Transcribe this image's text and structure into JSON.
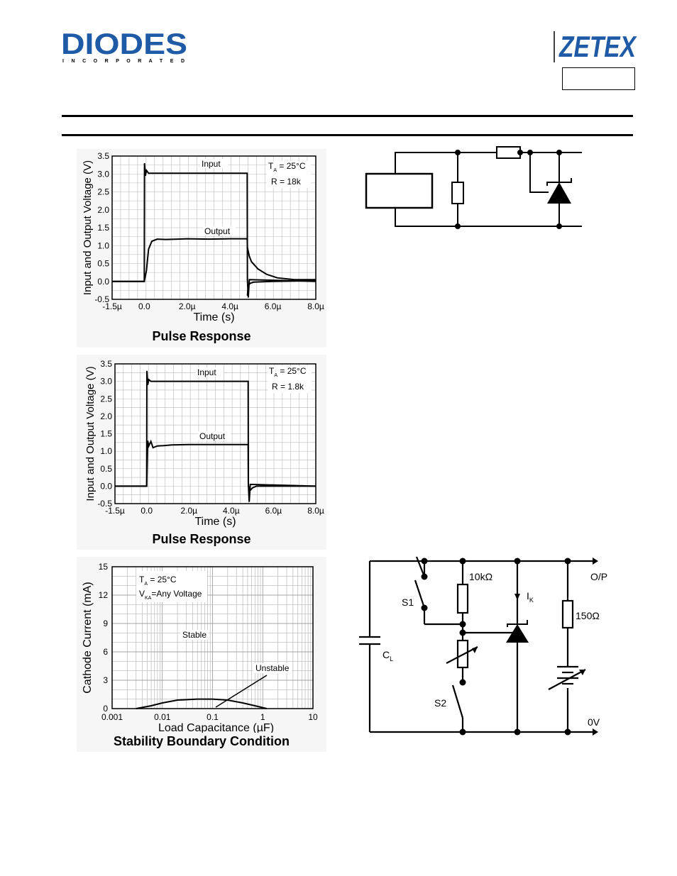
{
  "header": {
    "diodes_logo_text": "DIODES",
    "diodes_logo_sub": "I N C O R P O R A T E D",
    "zetex_logo_text": "ZETEX",
    "accent_color": "#1f5aa6"
  },
  "charts": {
    "pulse1": {
      "caption": "Pulse Response",
      "chart_data": {
        "type": "line",
        "title": "",
        "xlabel": "Time (s)",
        "ylabel": "Input and Output Voltage (V)",
        "xlim": [
          -1.5,
          8.0
        ],
        "ylim": [
          -0.5,
          3.5
        ],
        "x_ticks": [
          "-1.5µ",
          "0.0",
          "2.0µ",
          "4.0µ",
          "6.0µ",
          "8.0µ"
        ],
        "x_tick_values": [
          -1.5,
          0,
          2,
          4,
          6,
          8
        ],
        "y_ticks": [
          "-0.5",
          "0.0",
          "0.5",
          "1.0",
          "1.5",
          "2.0",
          "2.5",
          "3.0",
          "3.5"
        ],
        "y_tick_values": [
          -0.5,
          0,
          0.5,
          1,
          1.5,
          2,
          2.5,
          3,
          3.5
        ],
        "annotations": [
          "T",
          "A",
          "= 25°C",
          "R = 18k"
        ],
        "series": [
          {
            "name": "Input",
            "x": [
              -1.5,
              0.0,
              0.01,
              0.05,
              0.1,
              0.2,
              4.8,
              4.81,
              4.85,
              4.9,
              8.0
            ],
            "y": [
              0,
              0,
              3.3,
              2.95,
              3.1,
              3.02,
              3.02,
              0.05,
              -0.45,
              0.05,
              0.0
            ]
          },
          {
            "name": "Output",
            "x": [
              -1.5,
              0.0,
              0.1,
              0.2,
              0.35,
              0.6,
              1.0,
              2.0,
              3.0,
              4.0,
              4.8,
              4.81,
              4.9,
              5.0,
              5.3,
              5.7,
              6.2,
              7.0,
              8.0
            ],
            "y": [
              0,
              0,
              0.3,
              0.9,
              1.12,
              1.18,
              1.17,
              1.19,
              1.18,
              1.19,
              1.19,
              0.95,
              0.7,
              0.55,
              0.35,
              0.2,
              0.1,
              0.05,
              0.05
            ]
          },
          {
            "name": "",
            "x": [
              4.81,
              4.85,
              4.95,
              5.1,
              5.5,
              6.0,
              8.0
            ],
            "y": [
              -0.4,
              -0.1,
              -0.05,
              -0.02,
              -0.01,
              0.0,
              0.02
            ]
          }
        ]
      }
    },
    "pulse2": {
      "caption": "Pulse Response",
      "chart_data": {
        "type": "line",
        "title": "",
        "xlabel": "Time (s)",
        "ylabel": "Input and Output Voltage (V)",
        "xlim": [
          -1.5,
          8.0
        ],
        "ylim": [
          -0.5,
          3.5
        ],
        "x_ticks": [
          "-1.5µ",
          "0.0",
          "2.0µ",
          "4.0µ",
          "6.0µ",
          "8.0µ"
        ],
        "x_tick_values": [
          -1.5,
          0,
          2,
          4,
          6,
          8
        ],
        "y_ticks": [
          "-0.5",
          "0.0",
          "0.5",
          "1.0",
          "1.5",
          "2.0",
          "2.5",
          "3.0",
          "3.5"
        ],
        "y_tick_values": [
          -0.5,
          0,
          0.5,
          1,
          1.5,
          2,
          2.5,
          3,
          3.5
        ],
        "annotations": [
          "T",
          "A",
          "= 25°C",
          "R = 1.8k"
        ],
        "series": [
          {
            "name": "Input",
            "x": [
              -1.5,
              0.0,
              0.01,
              0.05,
              0.1,
              0.2,
              4.8,
              4.81,
              4.85,
              4.9,
              8.0
            ],
            "y": [
              0,
              0,
              3.3,
              2.9,
              3.05,
              3.0,
              3.0,
              0.05,
              -0.45,
              0.05,
              0.0
            ]
          },
          {
            "name": "Output",
            "x": [
              -1.5,
              0.0,
              0.05,
              0.1,
              0.2,
              0.3,
              0.5,
              0.8,
              1.2,
              2.0,
              4.8,
              4.81,
              4.9,
              5.0,
              5.2,
              6.0,
              8.0
            ],
            "y": [
              0,
              0,
              1.3,
              1.15,
              1.28,
              1.1,
              1.15,
              1.16,
              1.18,
              1.19,
              1.19,
              0.0,
              -0.12,
              -0.05,
              0.0,
              0.0,
              0.0
            ]
          }
        ]
      }
    },
    "stability": {
      "caption": "Stability Boundary Condition",
      "chart_data": {
        "type": "area",
        "title": "",
        "xlabel": "Load Capacitance (µF)",
        "ylabel": "Cathode Current (mA)",
        "x_scale": "log",
        "xlim": [
          0.001,
          10
        ],
        "ylim": [
          0,
          15
        ],
        "x_ticks": [
          "0.001",
          "0.01",
          "0.1",
          "1",
          "10"
        ],
        "x_tick_values": [
          0.001,
          0.01,
          0.1,
          1,
          10
        ],
        "y_ticks": [
          "0",
          "3",
          "6",
          "9",
          "12",
          "15"
        ],
        "y_tick_values": [
          0,
          3,
          6,
          9,
          12,
          15
        ],
        "annotations": [
          "T",
          "A",
          " = 25°C",
          "V",
          "KA",
          "=Any Voltage",
          "Stable",
          "Unstable"
        ],
        "series": [
          {
            "name": "",
            "x": [
              0.003,
              0.006,
              0.01,
              0.02,
              0.05,
              0.1,
              0.2,
              0.4,
              0.7,
              1.2
            ],
            "y": [
              0,
              0.3,
              0.6,
              0.9,
              1.0,
              1.0,
              0.9,
              0.6,
              0.3,
              0
            ]
          }
        ]
      }
    }
  },
  "circuits": {
    "test_circuit_1": {
      "components": [
        "resistor-series",
        "resistor-shunt",
        "regulator-diode",
        "source-box"
      ]
    },
    "test_circuit_2": {
      "labels": {
        "r_top": "10kΩ",
        "r_load": "150Ω",
        "s1": "S1",
        "s2": "S2",
        "ik": "I",
        "ik_sub": "K",
        "cl": "C",
        "cl_sub": "L",
        "op": "O/P",
        "ov": "0V"
      }
    }
  }
}
